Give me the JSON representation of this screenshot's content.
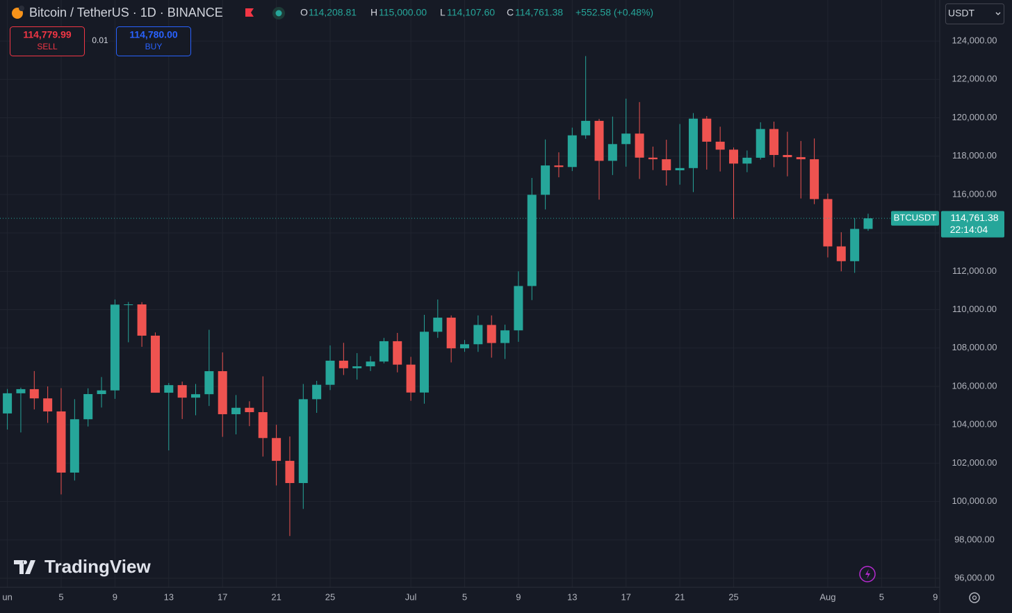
{
  "header": {
    "symbol": "Bitcoin / TetherUS · 1D · BINANCE",
    "o_label": "O",
    "o": "114,208.81",
    "h_label": "H",
    "h": "115,000.00",
    "l_label": "L",
    "l": "114,107.60",
    "c_label": "C",
    "c": "114,761.38",
    "change": "+552.58 (+0.48%)",
    "sell_price": "114,779.99",
    "sell": "SELL",
    "spread": "0.01",
    "buy_price": "114,780.00",
    "buy": "BUY",
    "currency": "USDT",
    "logo": "TradingView"
  },
  "chart_data": {
    "type": "candlestick",
    "x": [
      "Jun 1",
      "Jun 2",
      "Jun 3",
      "Jun 4",
      "Jun 5",
      "Jun 6",
      "Jun 7",
      "Jun 8",
      "Jun 9",
      "Jun 10",
      "Jun 11",
      "Jun 12",
      "Jun 13",
      "Jun 14",
      "Jun 15",
      "Jun 16",
      "Jun 17",
      "Jun 18",
      "Jun 19",
      "Jun 20",
      "Jun 21",
      "Jun 22",
      "Jun 23",
      "Jun 24",
      "Jun 25",
      "Jun 26",
      "Jun 27",
      "Jun 28",
      "Jun 29",
      "Jun 30",
      "Jul 1",
      "Jul 2",
      "Jul 3",
      "Jul 4",
      "Jul 5",
      "Jul 6",
      "Jul 7",
      "Jul 8",
      "Jul 9",
      "Jul 10",
      "Jul 11",
      "Jul 12",
      "Jul 13",
      "Jul 14",
      "Jul 15",
      "Jul 16",
      "Jul 17",
      "Jul 18",
      "Jul 19",
      "Jul 20",
      "Jul 21",
      "Jul 22",
      "Jul 23",
      "Jul 24",
      "Jul 25",
      "Jul 26",
      "Jul 27",
      "Jul 28",
      "Jul 29",
      "Jul 30",
      "Jul 31",
      "Aug 1",
      "Aug 2",
      "Aug 3",
      "Aug 4"
    ],
    "open": [
      104591,
      105642,
      105857,
      105376,
      104696,
      101508,
      104288,
      105600,
      105792,
      110263,
      110274,
      108645,
      105671,
      106066,
      105414,
      105594,
      106794,
      104551,
      104886,
      104658,
      103309,
      102120,
      100963,
      105333,
      106084,
      107341,
      106947,
      107047,
      107296,
      108356,
      107135,
      105681,
      108849,
      109584,
      107984,
      108198,
      109203,
      108262,
      108922,
      111233,
      115987,
      117516,
      117435,
      119086,
      119841,
      117758,
      118630,
      119177,
      117924,
      117840,
      117265,
      117380,
      119955,
      118755,
      118340,
      117614,
      117919,
      119416,
      118062,
      117950,
      117840,
      115764,
      113297,
      112527,
      114208.81
    ],
    "high": [
      105866,
      105935,
      106800,
      106000,
      105910,
      105333,
      105900,
      106488,
      110530,
      110400,
      110392,
      108813,
      106179,
      106250,
      106128,
      108952,
      107771,
      105550,
      105226,
      106524,
      104000,
      103390,
      106128,
      106290,
      108135,
      108272,
      107735,
      107577,
      108528,
      108789,
      107540,
      109730,
      110529,
      109700,
      108420,
      109700,
      109700,
      109216,
      111999,
      116868,
      118869,
      118200,
      119488,
      123218,
      119940,
      120063,
      120998,
      120820,
      118499,
      118856,
      119676,
      120247,
      120090,
      119535,
      118451,
      118297,
      119766,
      119800,
      119273,
      118792,
      118922,
      116052,
      114036,
      114774,
      115000
    ],
    "low": [
      103752,
      103600,
      104800,
      104100,
      100372,
      101095,
      103910,
      104900,
      105350,
      108300,
      108064,
      105671,
      102664,
      104300,
      104494,
      104980,
      103371,
      103500,
      103929,
      102345,
      100837,
      98200,
      99613,
      104622,
      105808,
      106595,
      106356,
      106802,
      107200,
      106733,
      105250,
      105100,
      108530,
      107250,
      107800,
      107800,
      107500,
      107429,
      108324,
      110500,
      115222,
      116900,
      117224,
      118905,
      115736,
      117017,
      117453,
      116812,
      117277,
      116467,
      116515,
      116128,
      117301,
      117204,
      114723,
      117166,
      117825,
      117427,
      116950,
      115796,
      115500,
      112722,
      112000,
      111920,
      114107.6
    ],
    "close": [
      105642,
      105857,
      105376,
      104696,
      101508,
      104288,
      105600,
      105792,
      110263,
      110274,
      108645,
      105671,
      106066,
      105414,
      105594,
      106794,
      104551,
      104886,
      104658,
      103309,
      102120,
      100963,
      105333,
      106084,
      107341,
      106947,
      107047,
      107296,
      108356,
      107135,
      105681,
      108849,
      109584,
      107984,
      108198,
      109203,
      108262,
      108922,
      111233,
      115987,
      117516,
      117435,
      119086,
      119841,
      117758,
      118630,
      119177,
      117924,
      117840,
      117265,
      117380,
      119955,
      118755,
      118340,
      117614,
      117919,
      119416,
      118062,
      117950,
      117840,
      115764,
      113297,
      112527,
      114208.81,
      114761.38
    ],
    "up_color": "#26a69a",
    "down_color": "#ef5350",
    "ylim": [
      95530,
      126140
    ],
    "yticks": [
      {
        "value": 124000,
        "label": "124,000.00"
      },
      {
        "value": 122000,
        "label": "122,000.00"
      },
      {
        "value": 120000,
        "label": "120,000.00"
      },
      {
        "value": 118000,
        "label": "118,000.00"
      },
      {
        "value": 116000,
        "label": "116,000.00"
      },
      {
        "value": 114000,
        "label": "114,000.00"
      },
      {
        "value": 112000,
        "label": "112,000.00"
      },
      {
        "value": 110000,
        "label": "110,000.00"
      },
      {
        "value": 108000,
        "label": "108,000.00"
      },
      {
        "value": 106000,
        "label": "106,000.00"
      },
      {
        "value": 104000,
        "label": "104,000.00"
      },
      {
        "value": 102000,
        "label": "102,000.00"
      },
      {
        "value": 100000,
        "label": "100,000.00"
      },
      {
        "value": 98000,
        "label": "98,000.00"
      },
      {
        "value": 96000,
        "label": "96,000.00"
      }
    ],
    "xticks": [
      {
        "value": "Jun 1",
        "label": "un"
      },
      {
        "value": "Jun 5",
        "label": "5"
      },
      {
        "value": "Jun 9",
        "label": "9"
      },
      {
        "value": "Jun 13",
        "label": "13"
      },
      {
        "value": "Jun 17",
        "label": "17"
      },
      {
        "value": "Jun 21",
        "label": "21"
      },
      {
        "value": "Jun 25",
        "label": "25"
      },
      {
        "value": "Jul 1",
        "label": "Jul"
      },
      {
        "value": "Jul 5",
        "label": "5"
      },
      {
        "value": "Jul 9",
        "label": "9"
      },
      {
        "value": "Jul 13",
        "label": "13"
      },
      {
        "value": "Jul 17",
        "label": "17"
      },
      {
        "value": "Jul 21",
        "label": "21"
      },
      {
        "value": "Jul 25",
        "label": "25"
      },
      {
        "value": "Aug 1",
        "label": "Aug"
      },
      {
        "value": "Aug 5",
        "label": "5"
      },
      {
        "value": "Aug 9",
        "label": "9"
      }
    ],
    "grid": true,
    "last_price": {
      "value": 114761.38,
      "label": "114,761.38"
    },
    "symbol_tag": "BTCUSDT",
    "countdown": "22:14:04"
  }
}
